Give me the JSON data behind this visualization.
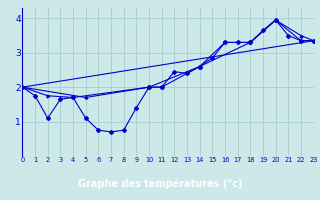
{
  "background_color": "#cce8e8",
  "plot_bg_color": "#cce8e8",
  "bottom_bar_color": "#0000aa",
  "line_color": "#0000cc",
  "marker_color": "#0000cc",
  "xlabel": "Graphe des températures (°c)",
  "xlabel_color": "#ffffff",
  "xlim": [
    0,
    23
  ],
  "ylim": [
    0.0,
    4.3
  ],
  "yticks": [
    1,
    2,
    3,
    4
  ],
  "xticks": [
    0,
    1,
    2,
    3,
    4,
    5,
    6,
    7,
    8,
    9,
    10,
    11,
    12,
    13,
    14,
    15,
    16,
    17,
    18,
    19,
    20,
    21,
    22,
    23
  ],
  "series1_x": [
    0,
    1,
    2,
    3,
    4,
    5,
    6,
    7,
    8,
    9,
    10,
    11,
    12,
    13,
    14,
    15,
    16,
    17,
    18,
    19,
    20,
    21,
    22,
    23
  ],
  "series1_y": [
    2.0,
    1.75,
    1.1,
    1.65,
    1.7,
    1.1,
    0.75,
    0.7,
    0.75,
    1.4,
    2.0,
    2.0,
    2.45,
    2.4,
    2.6,
    2.85,
    3.3,
    3.3,
    3.3,
    3.65,
    3.95,
    3.5,
    3.35,
    3.35
  ],
  "series2_x": [
    0,
    2,
    4,
    10,
    11,
    13,
    14,
    16,
    18,
    20,
    22,
    23
  ],
  "series2_y": [
    2.0,
    1.75,
    1.7,
    2.0,
    2.0,
    2.4,
    2.6,
    3.3,
    3.3,
    3.95,
    3.35,
    3.35
  ],
  "series3_x": [
    0,
    23
  ],
  "series3_y": [
    2.0,
    3.35
  ],
  "series4_x": [
    0,
    5,
    10,
    14,
    18,
    20,
    22,
    23
  ],
  "series4_y": [
    2.0,
    1.7,
    2.0,
    2.6,
    3.3,
    3.95,
    3.5,
    3.35
  ],
  "lw": 0.8,
  "ms": 2.0
}
